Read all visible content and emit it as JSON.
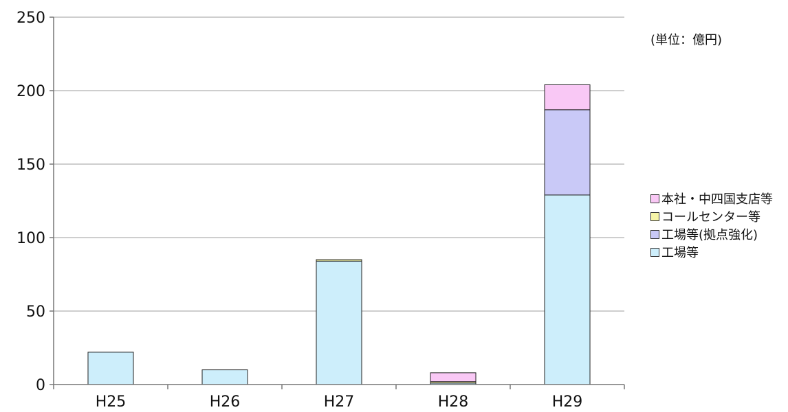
{
  "chart_data": {
    "type": "bar",
    "stacked": true,
    "categories": [
      "H25",
      "H26",
      "H27",
      "H28",
      "H29"
    ],
    "series": [
      {
        "name": "工場等",
        "color": "#cdeefb",
        "values": [
          22,
          10,
          84,
          1,
          129
        ]
      },
      {
        "name": "工場等(拠点強化)",
        "color": "#c9c9f7",
        "values": [
          0,
          0,
          0,
          0,
          58
        ]
      },
      {
        "name": "コールセンター等",
        "color": "#f7f5a8",
        "values": [
          0,
          0,
          1,
          1,
          0
        ]
      },
      {
        "name": "本社・中四国支店等",
        "color": "#f9c8f5",
        "values": [
          0,
          0,
          0,
          6,
          17
        ]
      }
    ],
    "yticks": [
      0,
      50,
      100,
      150,
      200,
      250
    ],
    "ylim": [
      0,
      250
    ],
    "grid": true,
    "legend_position": "right",
    "legend_order": [
      "本社・中四国支店等",
      "コールセンター等",
      "工場等(拠点強化)",
      "工場等"
    ],
    "unit_note": "(単位：億円)"
  }
}
